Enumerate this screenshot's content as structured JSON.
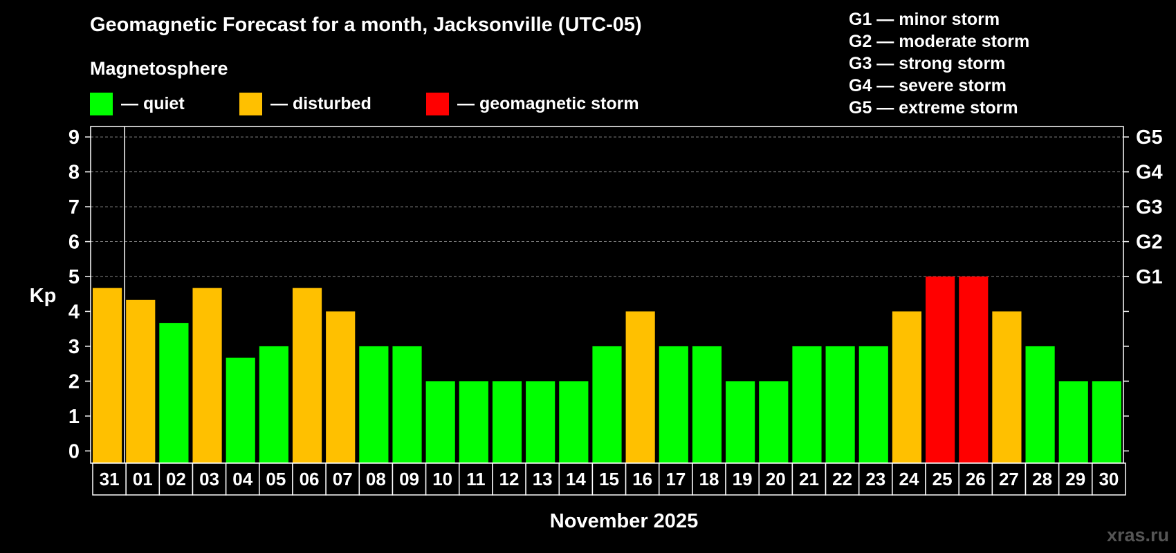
{
  "title": "Geomagnetic Forecast for a month, Jacksonville (UTC-05)",
  "subtitle": "Magnetosphere",
  "legend": [
    {
      "label": "— quiet",
      "color": "#00ff00"
    },
    {
      "label": "— disturbed",
      "color": "#ffc000"
    },
    {
      "label": "— geomagnetic storm",
      "color": "#ff0000"
    }
  ],
  "storm_scale": [
    "G1 — minor storm",
    "G2 — moderate storm",
    "G3 — strong storm",
    "G4 — severe storm",
    "G5 — extreme storm"
  ],
  "watermark": "xras.ru",
  "chart_data": {
    "type": "bar",
    "title": "Geomagnetic Forecast for a month, Jacksonville (UTC-05)",
    "xlabel": "November 2025",
    "ylabel": "Kp",
    "ylim": [
      0,
      9
    ],
    "yticks": [
      0,
      1,
      2,
      3,
      4,
      5,
      6,
      7,
      8,
      9
    ],
    "right_axis_labels": [
      {
        "level": 5,
        "label": "G1"
      },
      {
        "level": 6,
        "label": "G2"
      },
      {
        "level": 7,
        "label": "G3"
      },
      {
        "level": 8,
        "label": "G4"
      },
      {
        "level": 9,
        "label": "G5"
      }
    ],
    "categories": [
      "31",
      "01",
      "02",
      "03",
      "04",
      "05",
      "06",
      "07",
      "08",
      "09",
      "10",
      "11",
      "12",
      "13",
      "14",
      "15",
      "16",
      "17",
      "18",
      "19",
      "20",
      "21",
      "22",
      "23",
      "24",
      "25",
      "26",
      "27",
      "28",
      "29",
      "30"
    ],
    "values": [
      4.67,
      4.33,
      3.67,
      4.67,
      2.67,
      3,
      4.67,
      4,
      3,
      3,
      2,
      2,
      2,
      2,
      2,
      3,
      4,
      3,
      3,
      2,
      2,
      3,
      3,
      3,
      4,
      5,
      5,
      4,
      3,
      2,
      2
    ],
    "status": [
      "disturbed",
      "disturbed",
      "quiet",
      "disturbed",
      "quiet",
      "quiet",
      "disturbed",
      "disturbed",
      "quiet",
      "quiet",
      "quiet",
      "quiet",
      "quiet",
      "quiet",
      "quiet",
      "quiet",
      "disturbed",
      "quiet",
      "quiet",
      "quiet",
      "quiet",
      "quiet",
      "quiet",
      "quiet",
      "disturbed",
      "storm",
      "storm",
      "disturbed",
      "quiet",
      "quiet",
      "quiet"
    ],
    "colors": {
      "quiet": "#00ff00",
      "disturbed": "#ffc000",
      "storm": "#ff0000"
    }
  }
}
